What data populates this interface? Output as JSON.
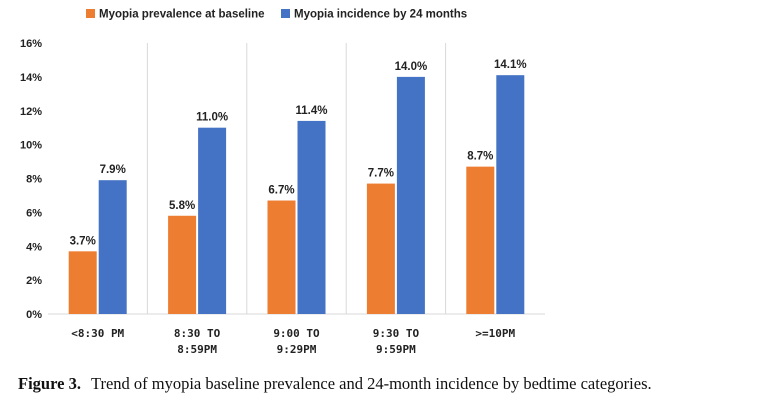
{
  "chart_data": {
    "type": "bar",
    "categories": [
      [
        "<8:30 PM"
      ],
      [
        "8:30 TO",
        "8:59PM"
      ],
      [
        "9:00 TO",
        "9:29PM"
      ],
      [
        "9:30 TO",
        "9:59PM"
      ],
      [
        ">=10PM"
      ]
    ],
    "series": [
      {
        "name": "Myopia prevalence at baseline",
        "color": "#ED7D31",
        "values": [
          3.7,
          5.8,
          6.7,
          7.7,
          8.7
        ],
        "labels": [
          "3.7%",
          "5.8%",
          "6.7%",
          "7.7%",
          "8.7%"
        ]
      },
      {
        "name": "Myopia incidence by 24 months",
        "color": "#4472C4",
        "values": [
          7.9,
          11.0,
          11.4,
          14.0,
          14.1
        ],
        "labels": [
          "7.9%",
          "11.0%",
          "11.4%",
          "14.0%",
          "14.1%"
        ]
      }
    ],
    "ylim": [
      0,
      16
    ],
    "yticks": [
      0,
      2,
      4,
      6,
      8,
      10,
      12,
      14,
      16
    ],
    "ytick_labels": [
      "0%",
      "2%",
      "4%",
      "6%",
      "8%",
      "10%",
      "12%",
      "14%",
      "16%"
    ],
    "legend_position": "top-left",
    "grid": "vertical separators between categories"
  },
  "caption": {
    "label": "Figure 3.",
    "text": "Trend of myopia baseline prevalence and 24-month incidence by bedtime categories."
  }
}
